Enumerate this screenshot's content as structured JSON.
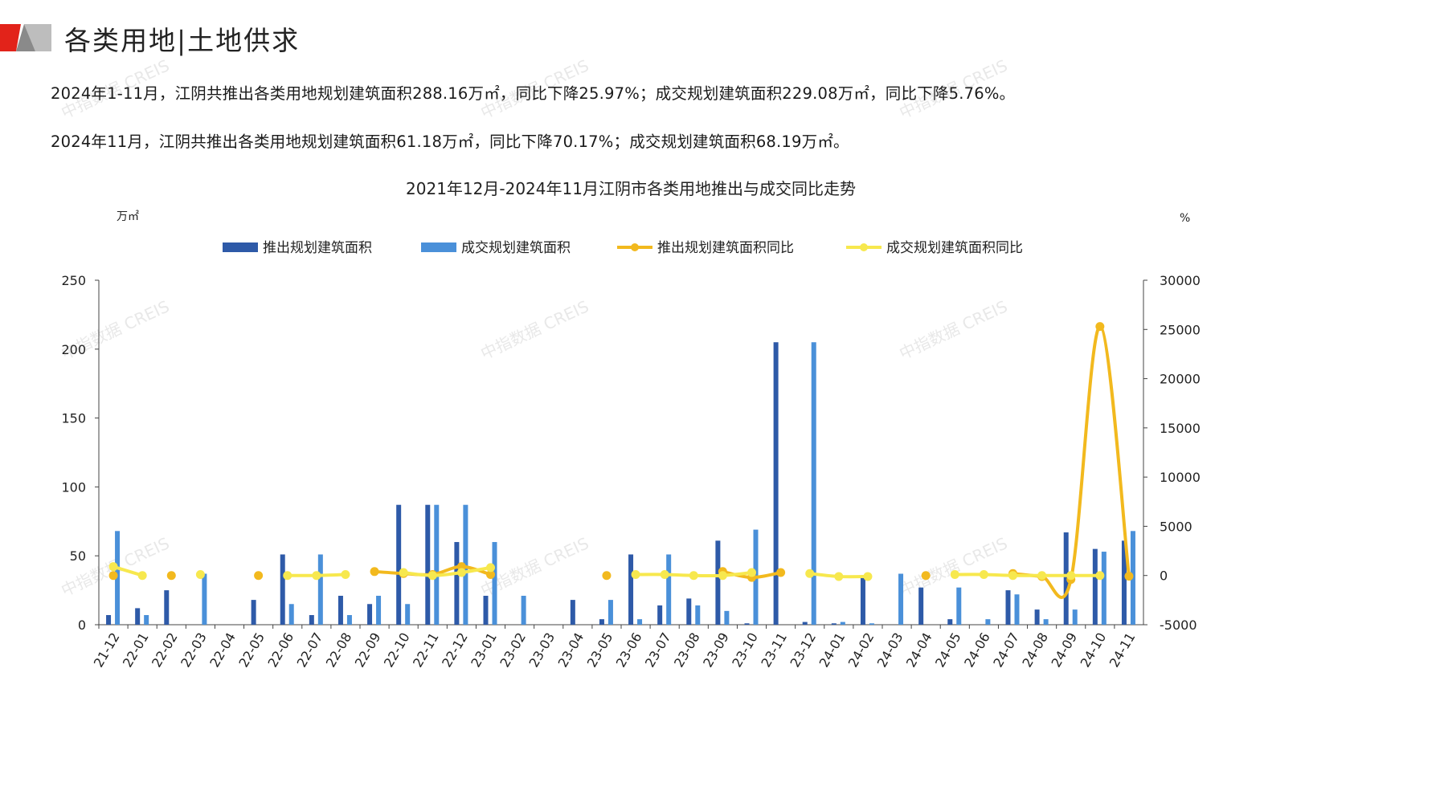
{
  "header": {
    "title": "各类用地|土地供求"
  },
  "summary": {
    "line1": "2024年1-11月，江阴共推出各类用地规划建筑面积288.16万㎡，同比下降25.97%；成交规划建筑面积229.08万㎡，同比下降5.76%。",
    "line2": "2024年11月，江阴共推出各类用地规划建筑面积61.18万㎡，同比下降70.17%；成交规划建筑面积68.19万㎡。"
  },
  "watermark": "中指数据 CREIS",
  "colors": {
    "supply": "#2E5AA8",
    "deal": "#4A90D9",
    "supply_yoy": "#F2B91E",
    "deal_yoy": "#F7E84E",
    "logo_red": "#E2231A"
  },
  "chart_data": {
    "type": "bar",
    "title": "2021年12月-2024年11月江阴市各类用地推出与成交同比走势",
    "ylabel": "万㎡",
    "y2label": "%",
    "ylim": [
      0,
      250
    ],
    "y2lim": [
      -5000,
      30000
    ],
    "yticks": [
      0,
      50,
      100,
      150,
      200,
      250
    ],
    "y2ticks": [
      -5000,
      0,
      5000,
      10000,
      15000,
      20000,
      25000,
      30000
    ],
    "legend_position": "top",
    "categories": [
      "21-12",
      "22-01",
      "22-02",
      "22-03",
      "22-04",
      "22-05",
      "22-06",
      "22-07",
      "22-08",
      "22-09",
      "22-10",
      "22-11",
      "22-12",
      "23-01",
      "23-02",
      "23-03",
      "23-04",
      "23-05",
      "23-06",
      "23-07",
      "23-08",
      "23-09",
      "23-10",
      "23-11",
      "23-12",
      "24-01",
      "24-02",
      "24-03",
      "24-04",
      "24-05",
      "24-06",
      "24-07",
      "24-08",
      "24-09",
      "24-10",
      "24-11"
    ],
    "series": [
      {
        "name": "推出规划建筑面积",
        "kind": "bar",
        "axis": "left",
        "values": [
          7,
          12,
          25,
          0,
          0,
          18,
          51,
          7,
          21,
          15,
          87,
          87,
          60,
          21,
          0,
          0,
          18,
          4,
          51,
          14,
          19,
          61,
          1,
          205,
          2,
          1,
          35,
          0,
          27,
          4,
          0,
          25,
          11,
          67,
          55,
          61
        ]
      },
      {
        "name": "成交规划建筑面积",
        "kind": "bar",
        "axis": "left",
        "values": [
          68,
          7,
          0,
          37,
          0,
          0,
          15,
          51,
          7,
          21,
          15,
          87,
          87,
          60,
          21,
          0,
          0,
          18,
          4,
          51,
          14,
          10,
          69,
          0,
          205,
          2,
          1,
          37,
          0,
          27,
          4,
          22,
          4,
          11,
          53,
          68
        ]
      },
      {
        "name": "推出规划建筑面积同比",
        "kind": "line",
        "axis": "right",
        "values": [
          0,
          null,
          0,
          null,
          null,
          0,
          null,
          null,
          null,
          400,
          200,
          100,
          900,
          100,
          null,
          null,
          null,
          0,
          null,
          null,
          null,
          400,
          -200,
          300,
          null,
          null,
          null,
          null,
          0,
          null,
          null,
          200,
          -100,
          -400,
          25300,
          -70
        ]
      },
      {
        "name": "成交规划建筑面积同比",
        "kind": "line",
        "axis": "right",
        "values": [
          900,
          0,
          null,
          100,
          null,
          null,
          0,
          0,
          100,
          null,
          300,
          0,
          300,
          800,
          null,
          null,
          null,
          null,
          100,
          100,
          0,
          0,
          300,
          null,
          200,
          -100,
          -100,
          null,
          null,
          100,
          100,
          0,
          0,
          0,
          0,
          null
        ]
      }
    ]
  }
}
